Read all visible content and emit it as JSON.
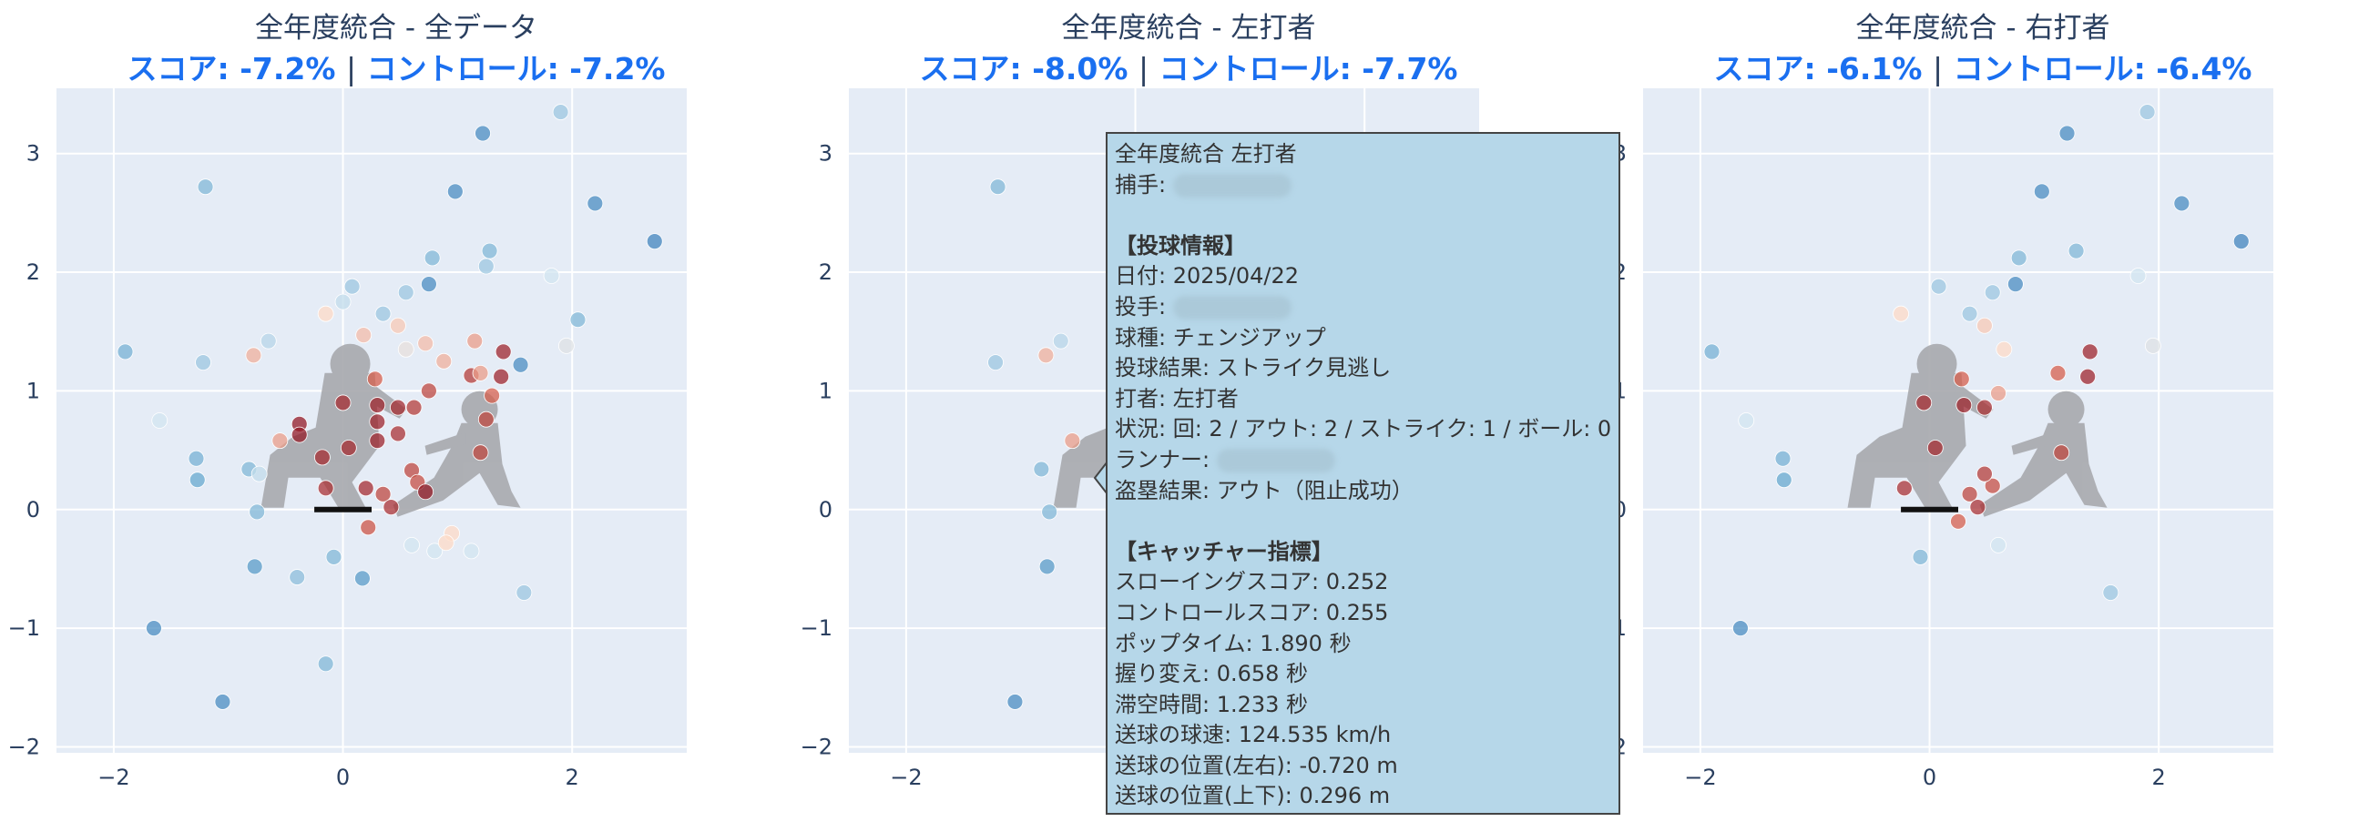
{
  "chart_data": [
    {
      "type": "scatter",
      "title": "全年度統合 - 全データ",
      "score_label": "スコア: -7.2%",
      "control_label": "コントロール: -7.2%",
      "separator": "|",
      "xlim": [
        -2.5,
        3.0
      ],
      "ylim": [
        -2.05,
        3.55
      ],
      "xticks": [
        -2,
        0,
        2
      ],
      "yticks": [
        -2,
        -1,
        0,
        1,
        2,
        3
      ],
      "points": [
        {
          "x": -1.9,
          "y": 1.33,
          "c": 0.28
        },
        {
          "x": -1.2,
          "y": 2.72,
          "c": 0.3
        },
        {
          "x": -1.65,
          "y": -1.0,
          "c": 0.15
        },
        {
          "x": -1.05,
          "y": -1.62,
          "c": 0.15
        },
        {
          "x": -1.28,
          "y": 0.43,
          "c": 0.28
        },
        {
          "x": -1.27,
          "y": 0.25,
          "c": 0.25
        },
        {
          "x": -1.22,
          "y": 1.24,
          "c": 0.35
        },
        {
          "x": -1.6,
          "y": 0.75,
          "c": 0.45
        },
        {
          "x": -0.82,
          "y": 0.34,
          "c": 0.3
        },
        {
          "x": -0.75,
          "y": -0.02,
          "c": 0.3
        },
        {
          "x": -0.77,
          "y": -0.48,
          "c": 0.2
        },
        {
          "x": -0.4,
          "y": -0.57,
          "c": 0.32
        },
        {
          "x": -0.73,
          "y": 0.3,
          "c": 0.42
        },
        {
          "x": -0.15,
          "y": -1.3,
          "c": 0.3
        },
        {
          "x": -0.08,
          "y": -0.4,
          "c": 0.3
        },
        {
          "x": 0.17,
          "y": -0.58,
          "c": 0.2
        },
        {
          "x": -0.78,
          "y": 1.3,
          "c": 0.62
        },
        {
          "x": -0.65,
          "y": 1.42,
          "c": 0.4
        },
        {
          "x": -0.55,
          "y": 0.58,
          "c": 0.65
        },
        {
          "x": -0.38,
          "y": 0.72,
          "c": 0.95
        },
        {
          "x": -0.38,
          "y": 0.63,
          "c": 0.95
        },
        {
          "x": -0.18,
          "y": 0.44,
          "c": 0.9
        },
        {
          "x": -0.15,
          "y": 0.18,
          "c": 0.88
        },
        {
          "x": 0.0,
          "y": 0.9,
          "c": 0.9
        },
        {
          "x": 0.05,
          "y": 0.52,
          "c": 0.9
        },
        {
          "x": -0.15,
          "y": 1.65,
          "c": 0.55
        },
        {
          "x": 0.0,
          "y": 1.75,
          "c": 0.42
        },
        {
          "x": 0.08,
          "y": 1.88,
          "c": 0.35
        },
        {
          "x": 0.18,
          "y": 1.47,
          "c": 0.6
        },
        {
          "x": 0.28,
          "y": 1.1,
          "c": 0.75
        },
        {
          "x": 0.3,
          "y": 0.88,
          "c": 0.92
        },
        {
          "x": 0.3,
          "y": 0.74,
          "c": 0.92
        },
        {
          "x": 0.3,
          "y": 0.58,
          "c": 0.92
        },
        {
          "x": 0.2,
          "y": 0.18,
          "c": 0.9
        },
        {
          "x": 0.35,
          "y": 0.13,
          "c": 0.82
        },
        {
          "x": 0.22,
          "y": -0.15,
          "c": 0.78
        },
        {
          "x": 0.42,
          "y": 0.02,
          "c": 0.88
        },
        {
          "x": 0.48,
          "y": 0.86,
          "c": 0.9
        },
        {
          "x": 0.48,
          "y": 0.64,
          "c": 0.88
        },
        {
          "x": 0.55,
          "y": 1.35,
          "c": 0.5
        },
        {
          "x": 0.6,
          "y": 0.33,
          "c": 0.82
        },
        {
          "x": 0.65,
          "y": 0.23,
          "c": 0.8
        },
        {
          "x": 0.62,
          "y": 0.86,
          "c": 0.85
        },
        {
          "x": 0.75,
          "y": 1.0,
          "c": 0.82
        },
        {
          "x": 0.72,
          "y": 1.4,
          "c": 0.6
        },
        {
          "x": 0.72,
          "y": 0.15,
          "c": 0.95
        },
        {
          "x": 0.35,
          "y": 1.65,
          "c": 0.35
        },
        {
          "x": 0.48,
          "y": 1.55,
          "c": 0.58
        },
        {
          "x": 0.55,
          "y": 1.83,
          "c": 0.35
        },
        {
          "x": 0.75,
          "y": 1.9,
          "c": 0.15
        },
        {
          "x": 0.78,
          "y": 2.12,
          "c": 0.3
        },
        {
          "x": 0.88,
          "y": 1.25,
          "c": 0.62
        },
        {
          "x": 0.95,
          "y": -0.2,
          "c": 0.55
        },
        {
          "x": 0.6,
          "y": -0.3,
          "c": 0.45
        },
        {
          "x": 0.8,
          "y": -0.35,
          "c": 0.45
        },
        {
          "x": 0.9,
          "y": -0.28,
          "c": 0.55
        },
        {
          "x": 0.98,
          "y": 2.68,
          "c": 0.15
        },
        {
          "x": 1.15,
          "y": 1.42,
          "c": 0.65
        },
        {
          "x": 1.12,
          "y": 1.13,
          "c": 0.85
        },
        {
          "x": 1.2,
          "y": 1.15,
          "c": 0.65
        },
        {
          "x": 1.25,
          "y": 0.76,
          "c": 0.82
        },
        {
          "x": 1.38,
          "y": 1.12,
          "c": 0.92
        },
        {
          "x": 1.4,
          "y": 1.33,
          "c": 0.92
        },
        {
          "x": 1.3,
          "y": 0.96,
          "c": 0.75
        },
        {
          "x": 1.2,
          "y": 0.48,
          "c": 0.82
        },
        {
          "x": 1.12,
          "y": -0.35,
          "c": 0.45
        },
        {
          "x": 1.25,
          "y": 2.05,
          "c": 0.35
        },
        {
          "x": 1.28,
          "y": 2.18,
          "c": 0.3
        },
        {
          "x": 1.22,
          "y": 3.17,
          "c": 0.15
        },
        {
          "x": 1.55,
          "y": 1.22,
          "c": 0.15
        },
        {
          "x": 1.58,
          "y": -0.7,
          "c": 0.35
        },
        {
          "x": 1.82,
          "y": 1.97,
          "c": 0.45
        },
        {
          "x": 1.9,
          "y": 3.35,
          "c": 0.35
        },
        {
          "x": 1.95,
          "y": 1.38,
          "c": 0.48
        },
        {
          "x": 2.05,
          "y": 1.6,
          "c": 0.3
        },
        {
          "x": 2.2,
          "y": 2.58,
          "c": 0.15
        },
        {
          "x": 2.72,
          "y": 2.26,
          "c": 0.12
        }
      ]
    },
    {
      "type": "scatter",
      "title": "全年度統合 - 左打者",
      "score_label": "スコア: -8.0%",
      "control_label": "コントロール: -7.7%",
      "separator": "|",
      "xlim": [
        -2.5,
        3.0
      ],
      "ylim": [
        -2.05,
        3.55
      ],
      "xticks": [
        -2
      ],
      "yticks": [
        -2,
        -1,
        0,
        1,
        2,
        3
      ],
      "points": [
        {
          "x": -1.2,
          "y": 2.72,
          "c": 0.3
        },
        {
          "x": -1.22,
          "y": 1.24,
          "c": 0.35
        },
        {
          "x": -0.82,
          "y": 0.34,
          "c": 0.3
        },
        {
          "x": -0.75,
          "y": -0.02,
          "c": 0.3
        },
        {
          "x": -0.77,
          "y": -0.48,
          "c": 0.2
        },
        {
          "x": -1.05,
          "y": -1.62,
          "c": 0.15
        },
        {
          "x": -0.78,
          "y": 1.3,
          "c": 0.62
        },
        {
          "x": -0.65,
          "y": 1.42,
          "c": 0.4
        },
        {
          "x": -0.55,
          "y": 0.58,
          "c": 0.65
        }
      ]
    },
    {
      "type": "scatter",
      "title": "全年度統合 - 右打者",
      "score_label": "スコア: -6.1%",
      "control_label": "コントロール: -6.4%",
      "separator": "|",
      "xlim": [
        -2.5,
        3.0
      ],
      "ylim": [
        -2.05,
        3.55
      ],
      "xticks": [
        -2,
        0,
        2
      ],
      "yticks": [
        -2,
        -1,
        0,
        1,
        2,
        3
      ],
      "points": [
        {
          "x": -1.9,
          "y": 1.33,
          "c": 0.28
        },
        {
          "x": -1.65,
          "y": -1.0,
          "c": 0.15
        },
        {
          "x": -1.28,
          "y": 0.43,
          "c": 0.28
        },
        {
          "x": -1.27,
          "y": 0.25,
          "c": 0.25
        },
        {
          "x": -1.6,
          "y": 0.75,
          "c": 0.45
        },
        {
          "x": -0.08,
          "y": -0.4,
          "c": 0.3
        },
        {
          "x": -0.05,
          "y": 0.9,
          "c": 0.9
        },
        {
          "x": 0.05,
          "y": 0.52,
          "c": 0.9
        },
        {
          "x": 0.08,
          "y": 1.88,
          "c": 0.35
        },
        {
          "x": -0.25,
          "y": 1.65,
          "c": 0.55
        },
        {
          "x": -0.22,
          "y": 0.18,
          "c": 0.88
        },
        {
          "x": 0.28,
          "y": 1.1,
          "c": 0.75
        },
        {
          "x": 0.3,
          "y": 0.88,
          "c": 0.92
        },
        {
          "x": 0.48,
          "y": 0.86,
          "c": 0.88
        },
        {
          "x": 0.35,
          "y": 1.65,
          "c": 0.35
        },
        {
          "x": 0.48,
          "y": 1.55,
          "c": 0.58
        },
        {
          "x": 0.55,
          "y": 1.83,
          "c": 0.35
        },
        {
          "x": 0.6,
          "y": 0.98,
          "c": 0.65
        },
        {
          "x": 0.65,
          "y": 1.35,
          "c": 0.55
        },
        {
          "x": 0.75,
          "y": 1.9,
          "c": 0.15
        },
        {
          "x": 0.78,
          "y": 2.12,
          "c": 0.3
        },
        {
          "x": 0.25,
          "y": -0.1,
          "c": 0.75
        },
        {
          "x": 0.35,
          "y": 0.13,
          "c": 0.82
        },
        {
          "x": 0.42,
          "y": 0.02,
          "c": 0.88
        },
        {
          "x": 0.55,
          "y": 0.2,
          "c": 0.8
        },
        {
          "x": 0.6,
          "y": -0.3,
          "c": 0.45
        },
        {
          "x": 0.48,
          "y": 0.3,
          "c": 0.85
        },
        {
          "x": 0.98,
          "y": 2.68,
          "c": 0.15
        },
        {
          "x": 1.12,
          "y": 1.15,
          "c": 0.75
        },
        {
          "x": 1.2,
          "y": 3.17,
          "c": 0.15
        },
        {
          "x": 1.28,
          "y": 2.18,
          "c": 0.3
        },
        {
          "x": 1.38,
          "y": 1.12,
          "c": 0.92
        },
        {
          "x": 1.4,
          "y": 1.33,
          "c": 0.92
        },
        {
          "x": 1.15,
          "y": 0.48,
          "c": 0.82
        },
        {
          "x": 1.58,
          "y": -0.7,
          "c": 0.35
        },
        {
          "x": 1.82,
          "y": 1.97,
          "c": 0.45
        },
        {
          "x": 1.9,
          "y": 3.35,
          "c": 0.35
        },
        {
          "x": 1.95,
          "y": 1.38,
          "c": 0.48
        },
        {
          "x": 2.2,
          "y": 2.58,
          "c": 0.15
        },
        {
          "x": 2.72,
          "y": 2.26,
          "c": 0.12
        }
      ]
    }
  ],
  "tooltip": {
    "lines": [
      {
        "text": "全年度統合 左打者",
        "bold": false
      },
      {
        "text": "捕手: ",
        "bold": false,
        "redacted": true
      },
      {
        "text": "",
        "bold": false
      },
      {
        "text": "【投球情報】",
        "bold": true
      },
      {
        "text": "日付: 2025/04/22",
        "bold": false
      },
      {
        "text": "投手: ",
        "bold": false,
        "redacted": true
      },
      {
        "text": "球種: チェンジアップ",
        "bold": false
      },
      {
        "text": "投球結果: ストライク見逃し",
        "bold": false
      },
      {
        "text": "打者: 左打者",
        "bold": false
      },
      {
        "text": "状況: 回: 2 / アウト: 2 / ストライク: 1 / ボール: 0",
        "bold": false
      },
      {
        "text": "ランナー: ",
        "bold": false,
        "redacted": true
      },
      {
        "text": "盗塁結果: アウト（阻止成功）",
        "bold": false
      },
      {
        "text": "",
        "bold": false
      },
      {
        "text": "【キャッチャー指標】",
        "bold": true
      },
      {
        "text": "スローイングスコア: 0.252",
        "bold": false
      },
      {
        "text": "コントロールスコア: 0.255",
        "bold": false
      },
      {
        "text": "ポップタイム: 1.890 秒",
        "bold": false
      },
      {
        "text": "握り変え: 0.658 秒",
        "bold": false
      },
      {
        "text": "滞空時間: 1.233 秒",
        "bold": false
      },
      {
        "text": "送球の球速: 124.535 km/h",
        "bold": false
      },
      {
        "text": "送球の位置(左右): -0.720 m",
        "bold": false
      },
      {
        "text": "送球の位置(上下): 0.296 m",
        "bold": false
      }
    ]
  },
  "colors": {
    "plot_bg": "#e5ecf6",
    "grid": "#ffffff",
    "tick_text": "#2a3f5f",
    "accent_blue": "#1a6ff0",
    "silhouette": "#a9aaaf",
    "tooltip_bg": "#b6d7e9"
  }
}
